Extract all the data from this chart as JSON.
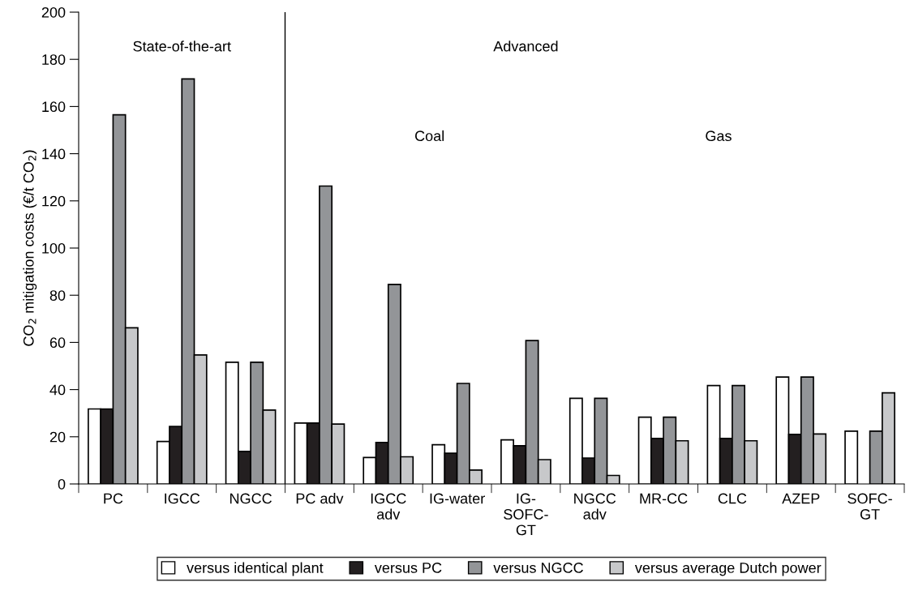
{
  "chart_data": {
    "type": "bar",
    "ylabel": "CO$_{2}$ mitigation costs (€/t CO$_{2}$)",
    "categories": [
      "PC",
      "IGCC",
      "NGCC",
      "PC adv",
      "IGCC\nadv",
      "IG-water",
      "IG-\nSOFC-\nGT",
      "NGCC\nadv",
      "MR-CC",
      "CLC",
      "AZEP",
      "SOFC-\nGT"
    ],
    "series": [
      {
        "name": "versus identical plant",
        "color": "#ffffff",
        "values": [
          31.8,
          18,
          51.6,
          25.8,
          11.2,
          16.6,
          18.7,
          36.3,
          28.3,
          41.7,
          45.3,
          22.4
        ]
      },
      {
        "name": "versus PC",
        "color": "#231f20",
        "values": [
          31.8,
          24.4,
          13.8,
          25.8,
          17.6,
          13,
          16.2,
          11,
          19.3,
          19.3,
          21,
          null
        ]
      },
      {
        "name": "versus NGCC",
        "color": "#939598",
        "values": [
          156.5,
          171.7,
          51.6,
          126.3,
          84.6,
          42.6,
          60.8,
          36.3,
          28.3,
          41.7,
          45.3,
          22.4
        ]
      },
      {
        "name": "versus average Dutch power",
        "color": "#c7c8ca",
        "values": [
          66.2,
          54.7,
          31.3,
          25.4,
          11.5,
          5.9,
          10.3,
          3.6,
          18.3,
          18.3,
          21.2,
          38.6
        ]
      }
    ],
    "ylim": [
      0,
      200
    ],
    "yticks": [
      0,
      20,
      40,
      60,
      80,
      100,
      120,
      140,
      160,
      180,
      200
    ],
    "annotations": [
      "State-of-the-art",
      "Advanced",
      "Coal",
      "Gas"
    ],
    "legend": "bottom",
    "grid": false
  }
}
